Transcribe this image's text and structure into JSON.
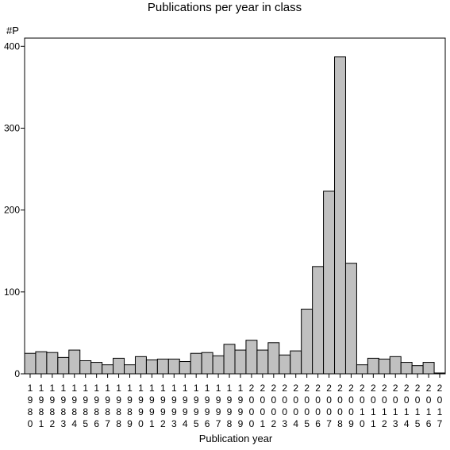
{
  "chart_data": {
    "type": "bar",
    "title": "Publications per year in class",
    "ylabel": "#P",
    "xlabel": "Publication year",
    "ylim": [
      0,
      410
    ],
    "yticks": [
      0,
      100,
      200,
      300,
      400
    ],
    "grid": false,
    "legend": "none",
    "bar_color": "#c0c0c0",
    "categories": [
      "1980",
      "1981",
      "1982",
      "1983",
      "1984",
      "1985",
      "1986",
      "1987",
      "1988",
      "1989",
      "1990",
      "1991",
      "1992",
      "1993",
      "1994",
      "1995",
      "1996",
      "1997",
      "1998",
      "1999",
      "2000",
      "2001",
      "2002",
      "2003",
      "2004",
      "2005",
      "2006",
      "2007",
      "2008",
      "2009",
      "2010",
      "2011",
      "2012",
      "2013",
      "2014",
      "2015",
      "2016",
      "2017"
    ],
    "values": [
      25,
      27,
      26,
      20,
      29,
      16,
      14,
      11,
      19,
      11,
      21,
      17,
      18,
      18,
      15,
      25,
      26,
      22,
      36,
      29,
      41,
      29,
      38,
      23,
      28,
      79,
      131,
      223,
      387,
      135,
      11,
      19,
      18,
      21,
      14,
      10,
      14,
      1
    ]
  }
}
